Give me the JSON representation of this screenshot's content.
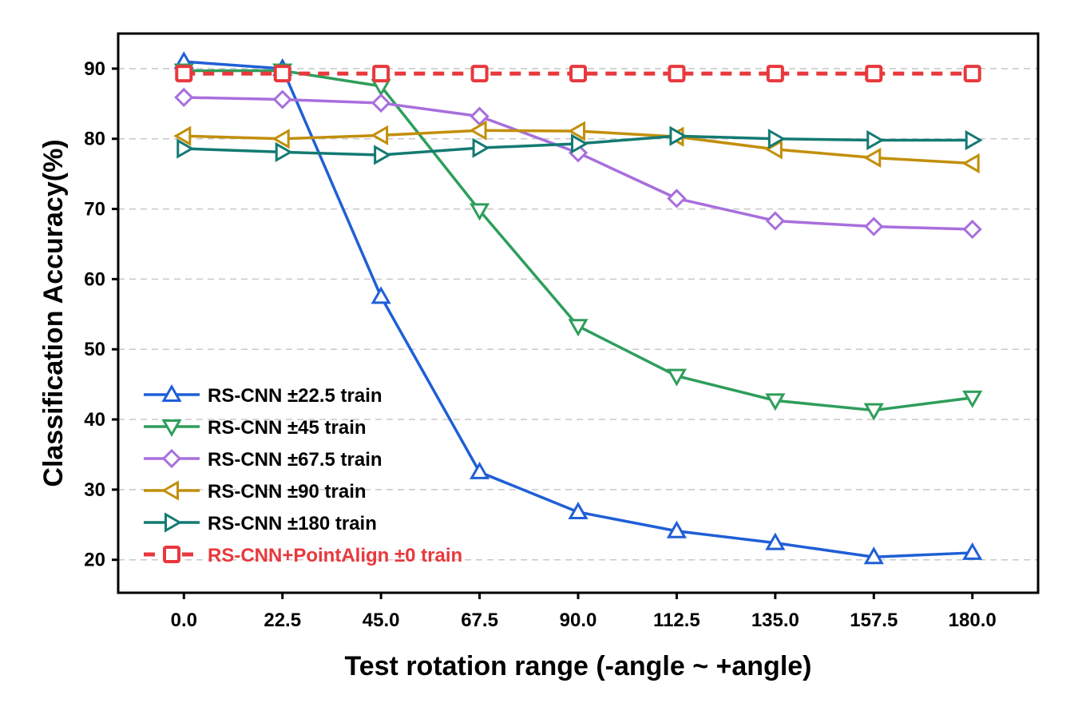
{
  "chart_data": {
    "type": "line",
    "title": "",
    "xlabel": "Test rotation range (-angle ~ +angle)",
    "ylabel": "Classification Accuracy(%)",
    "x": [
      0.0,
      22.5,
      45.0,
      67.5,
      90.0,
      112.5,
      135.0,
      157.5,
      180.0
    ],
    "x_tick_labels": [
      "0.0",
      "22.5",
      "45.0",
      "67.5",
      "90.0",
      "112.5",
      "135.0",
      "157.5",
      "180.0"
    ],
    "y_ticks": [
      20,
      30,
      40,
      50,
      60,
      70,
      80,
      90
    ],
    "ylim": [
      15.3,
      95.0
    ],
    "xlim": [
      -15,
      195
    ],
    "grid": "horizontal dashed",
    "legend_position": "lower-left",
    "series": [
      {
        "name": "RS-CNN ±22.5 train",
        "color": "#1f5fd6",
        "marker": "triangle-up",
        "values": [
          91.0,
          90.0,
          57.5,
          32.5,
          26.8,
          24.1,
          22.4,
          20.4,
          21.0
        ]
      },
      {
        "name": "RS-CNN ±45 train",
        "color": "#2e9e5b",
        "marker": "triangle-down",
        "values": [
          89.7,
          89.7,
          87.5,
          69.8,
          53.3,
          46.2,
          42.7,
          41.3,
          43.1
        ]
      },
      {
        "name": "RS-CNN ±67.5 train",
        "color": "#a86fdc",
        "marker": "diamond",
        "values": [
          85.9,
          85.6,
          85.1,
          83.2,
          78.0,
          71.5,
          68.3,
          67.5,
          67.1
        ]
      },
      {
        "name": "RS-CNN ±90 train",
        "color": "#c28f0a",
        "marker": "triangle-left",
        "values": [
          80.4,
          80.0,
          80.5,
          81.2,
          81.1,
          80.3,
          78.5,
          77.3,
          76.5
        ]
      },
      {
        "name": "RS-CNN ±180 train",
        "color": "#137a73",
        "marker": "triangle-right",
        "values": [
          78.6,
          78.1,
          77.7,
          78.7,
          79.3,
          80.4,
          80.0,
          79.8,
          79.8
        ]
      },
      {
        "name": "RS-CNN+PointAlign ±0 train",
        "color": "#e8383d",
        "marker": "square",
        "label_color": "#e8383d",
        "values": [
          89.3,
          89.3,
          89.3,
          89.3,
          89.3,
          89.3,
          89.3,
          89.3,
          89.3
        ]
      }
    ]
  }
}
